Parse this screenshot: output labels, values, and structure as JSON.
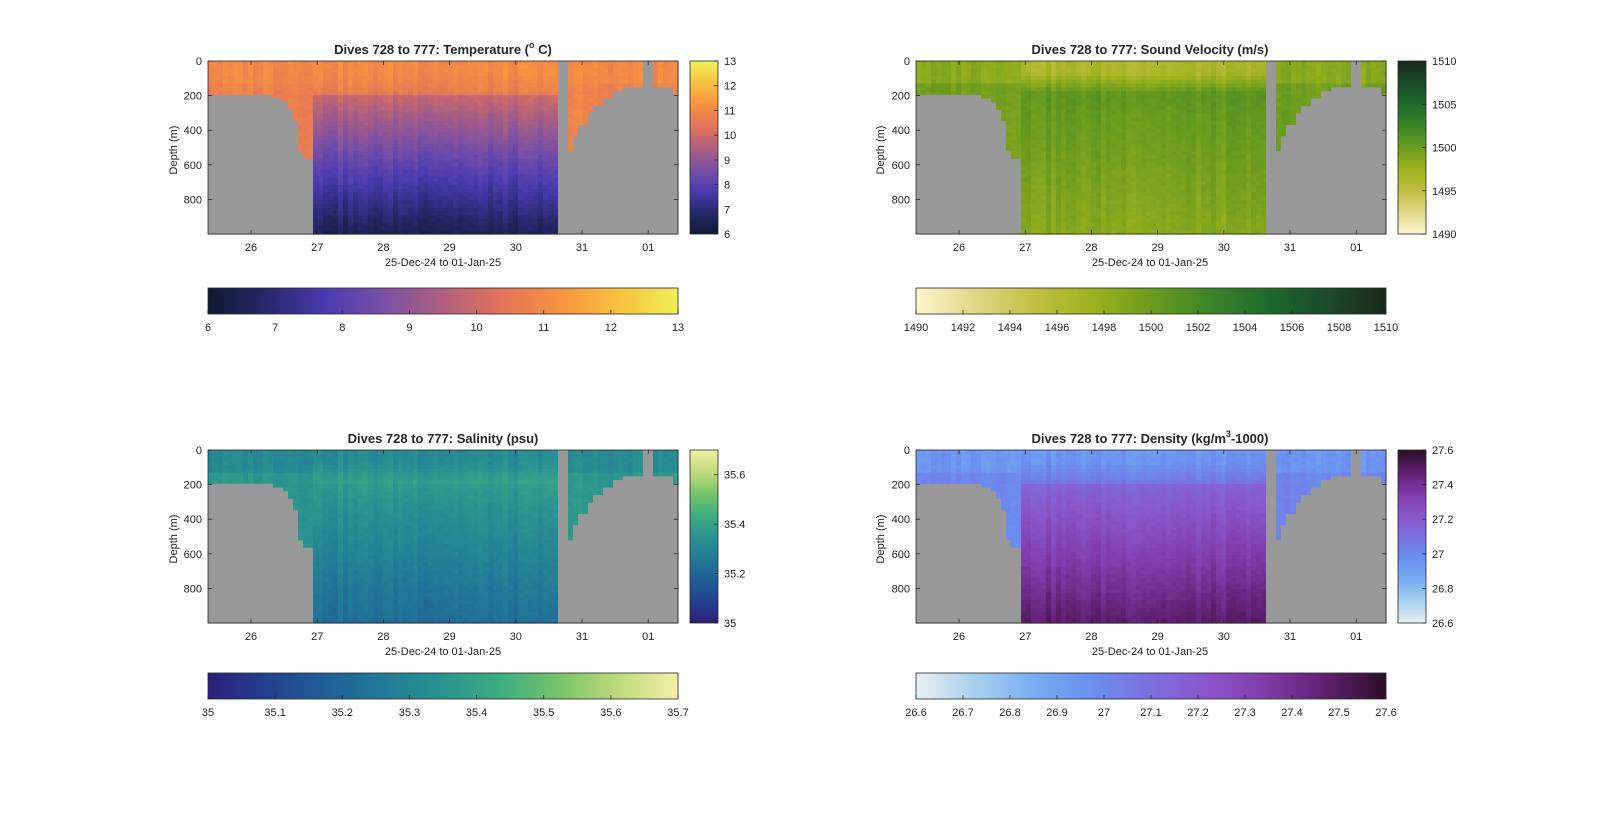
{
  "figure": {
    "background": "#ffffff",
    "land_color": "#999999"
  },
  "chart_data": [
    {
      "type": "heatmap",
      "title": "Dives 728 to 777: Temperature (",
      "title_sup": "o",
      "title_tail": " C)",
      "xlabel": "25-Dec-24 to 01-Jan-25",
      "ylabel": "Depth (m)",
      "xticks": [
        "26",
        "27",
        "28",
        "29",
        "30",
        "31",
        "01"
      ],
      "yticks": [
        "0",
        "200",
        "400",
        "600",
        "800"
      ],
      "xlim": [
        "25-Dec-24",
        "01-Jan-25"
      ],
      "ylim": [
        0,
        1000
      ],
      "colorbar": {
        "min": 6,
        "max": 13,
        "vertical_ticks": [
          "13",
          "12",
          "11",
          "10",
          "9",
          "8",
          "7",
          "6"
        ],
        "horizontal_ticks": [
          "6",
          "7",
          "8",
          "9",
          "10",
          "11",
          "12",
          "13"
        ],
        "colors": [
          "#0d1a33",
          "#26286b",
          "#4a3bb0",
          "#7a50a4",
          "#b0607e",
          "#e3735a",
          "#f8943f",
          "#f9c140",
          "#eff057"
        ]
      },
      "field": {
        "surface": 11.0,
        "bottom": 6.5,
        "shore": 11.0,
        "mid": 10.6,
        "decay_m": 320
      }
    },
    {
      "type": "heatmap",
      "title": "Dives 728 to 777: Sound Velocity (m/s)",
      "xlabel": "25-Dec-24 to 01-Jan-25",
      "ylabel": "Depth (m)",
      "xticks": [
        "26",
        "27",
        "28",
        "29",
        "30",
        "31",
        "01"
      ],
      "yticks": [
        "0",
        "200",
        "400",
        "600",
        "800"
      ],
      "xlim": [
        "25-Dec-24",
        "01-Jan-25"
      ],
      "ylim": [
        0,
        1000
      ],
      "colorbar": {
        "min": 1490,
        "max": 1510,
        "vertical_ticks": [
          "1510",
          "1505",
          "1500",
          "1495",
          "1490"
        ],
        "horizontal_ticks": [
          "1490",
          "1492",
          "1494",
          "1496",
          "1498",
          "1500",
          "1502",
          "1504",
          "1506",
          "1508",
          "1510"
        ],
        "colors": [
          "#fdf6cf",
          "#e2d888",
          "#c4bf43",
          "#9db21d",
          "#6a9c1e",
          "#3c8427",
          "#1d6a2c",
          "#1b4a27",
          "#172a1b"
        ]
      },
      "field": {
        "surface": 1496.5,
        "bottom": 1498.5,
        "shore": 1498.5,
        "mid": 1501.0,
        "decay_m": 300
      }
    },
    {
      "type": "heatmap",
      "title": "Dives 728 to 777: Salinity (psu)",
      "xlabel": "25-Dec-24 to 01-Jan-25",
      "ylabel": "Depth (m)",
      "xticks": [
        "26",
        "27",
        "28",
        "29",
        "30",
        "31",
        "01"
      ],
      "yticks": [
        "0",
        "200",
        "400",
        "600",
        "800"
      ],
      "xlim": [
        "25-Dec-24",
        "01-Jan-25"
      ],
      "ylim": [
        0,
        1000
      ],
      "colorbar": {
        "min": 35,
        "max": 35.7,
        "vertical_ticks": [
          "35.6",
          "35.4",
          "35.2",
          "35"
        ],
        "horizontal_ticks": [
          "35",
          "35.1",
          "35.2",
          "35.3",
          "35.4",
          "35.5",
          "35.6",
          "35.7"
        ],
        "colors": [
          "#2a1d7a",
          "#23408f",
          "#1f5f96",
          "#227a97",
          "#2a948f",
          "#3fad80",
          "#79c56a",
          "#c0dc7c",
          "#f3efa6"
        ]
      },
      "field": {
        "surface": 35.32,
        "bottom": 35.22,
        "shore": 35.32,
        "mid": 35.4,
        "decay_m": 400
      }
    },
    {
      "type": "heatmap",
      "title": "Dives 728 to 777: Density (kg/m",
      "title_sup": "3",
      "title_tail": "-1000)",
      "xlabel": "25-Dec-24 to 01-Jan-25",
      "ylabel": "Depth (m)",
      "xticks": [
        "26",
        "27",
        "28",
        "29",
        "30",
        "31",
        "01"
      ],
      "yticks": [
        "0",
        "200",
        "400",
        "600",
        "800"
      ],
      "xlim": [
        "25-Dec-24",
        "01-Jan-25"
      ],
      "ylim": [
        0,
        1000
      ],
      "colorbar": {
        "min": 26.6,
        "max": 27.6,
        "vertical_ticks": [
          "27.6",
          "27.4",
          "27.2",
          "27",
          "26.8",
          "26.6"
        ],
        "horizontal_ticks": [
          "26.6",
          "26.7",
          "26.8",
          "26.9",
          "27",
          "27.1",
          "27.2",
          "27.3",
          "27.4",
          "27.5",
          "27.6"
        ],
        "colors": [
          "#e6f1f1",
          "#a9d0ee",
          "#78aef2",
          "#6a8ff0",
          "#7b6fe0",
          "#8a55c8",
          "#7f3aa6",
          "#5d1f6e",
          "#2c0e26"
        ]
      },
      "field": {
        "surface": 26.95,
        "bottom": 27.48,
        "shore": 26.95,
        "mid": 27.08,
        "decay_m": 420
      }
    }
  ]
}
